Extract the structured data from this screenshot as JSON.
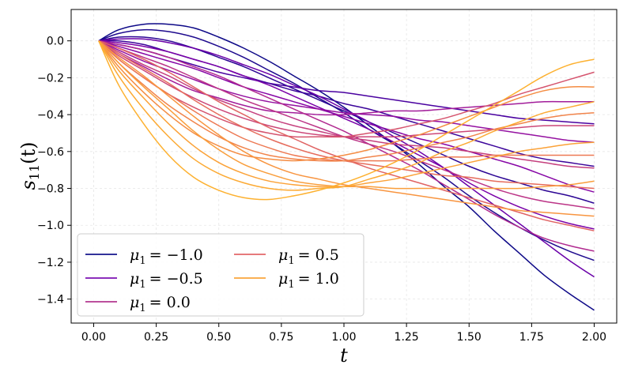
{
  "chart_data": {
    "type": "line",
    "title": "",
    "xlabel": "t",
    "ylabel": "s_{11}(t)",
    "ylabel_main": "s",
    "ylabel_sub": "11",
    "ylabel_tail": "(t)",
    "xlim": [
      -0.09,
      2.09
    ],
    "ylim": [
      -1.53,
      0.17
    ],
    "grid": true,
    "x_ticks": [
      0.0,
      0.25,
      0.5,
      0.75,
      1.0,
      1.25,
      1.5,
      1.75,
      2.0
    ],
    "x_tick_labels": [
      "0.00",
      "0.25",
      "0.50",
      "0.75",
      "1.00",
      "1.25",
      "1.50",
      "1.75",
      "2.00"
    ],
    "y_ticks": [
      0.0,
      -0.2,
      -0.4,
      -0.6,
      -0.8,
      -1.0,
      -1.2,
      -1.4
    ],
    "y_tick_labels": [
      "0.0",
      "−0.2",
      "−0.4",
      "−0.6",
      "−0.8",
      "−1.0",
      "−1.2",
      "−1.4"
    ],
    "x": [
      0.02,
      0.1,
      0.2,
      0.3,
      0.4,
      0.5,
      0.6,
      0.7,
      0.8,
      0.9,
      1.0,
      1.1,
      1.2,
      1.3,
      1.4,
      1.5,
      1.6,
      1.7,
      1.8,
      1.9,
      2.0
    ],
    "legend": {
      "location": "lower-left",
      "entries": [
        {
          "label": "μ₁ = −1.0",
          "symbol": "μ",
          "subscript": "1",
          "value": "= −1.0",
          "color": "#15158c"
        },
        {
          "label": "μ₁ = −0.5",
          "symbol": "μ",
          "subscript": "1",
          "value": "= −0.5",
          "color": "#7b10b3"
        },
        {
          "label": "μ₁ = 0.0",
          "symbol": "μ",
          "subscript": "1",
          "value": "= 0.0",
          "color": "#b3378f"
        },
        {
          "label": "μ₁ = 0.5",
          "symbol": "μ",
          "subscript": "1",
          "value": "= 0.5",
          "color": "#e3676a"
        },
        {
          "label": "μ₁ = 1.0",
          "symbol": "μ",
          "subscript": "1",
          "value": "= 1.0",
          "color": "#f9a53b"
        }
      ]
    },
    "series": [
      {
        "color": "#0d0887",
        "values": [
          0.0,
          0.06,
          0.09,
          0.09,
          0.07,
          0.02,
          -0.04,
          -0.11,
          -0.19,
          -0.27,
          -0.36,
          -0.46,
          -0.56,
          -0.67,
          -0.79,
          -0.9,
          -1.03,
          -1.15,
          -1.27,
          -1.37,
          -1.46
        ]
      },
      {
        "color": "#1e0a8e",
        "values": [
          0.0,
          0.04,
          0.06,
          0.05,
          0.02,
          -0.03,
          -0.09,
          -0.16,
          -0.23,
          -0.31,
          -0.39,
          -0.48,
          -0.56,
          -0.65,
          -0.74,
          -0.84,
          -0.93,
          -1.01,
          -1.08,
          -1.14,
          -1.19
        ]
      },
      {
        "color": "#2c0594",
        "values": [
          0.0,
          0.02,
          0.02,
          0.0,
          -0.04,
          -0.09,
          -0.14,
          -0.2,
          -0.26,
          -0.32,
          -0.38,
          -0.44,
          -0.5,
          -0.56,
          -0.62,
          -0.68,
          -0.73,
          -0.77,
          -0.81,
          -0.84,
          -0.88
        ]
      },
      {
        "color": "#3b049a",
        "values": [
          0.0,
          0.0,
          -0.02,
          -0.06,
          -0.1,
          -0.14,
          -0.19,
          -0.23,
          -0.27,
          -0.3,
          -0.34,
          -0.37,
          -0.41,
          -0.45,
          -0.49,
          -0.53,
          -0.57,
          -0.61,
          -0.64,
          -0.66,
          -0.68
        ]
      },
      {
        "color": "#4a02a0",
        "values": [
          0.0,
          -0.02,
          -0.05,
          -0.09,
          -0.13,
          -0.17,
          -0.2,
          -0.23,
          -0.25,
          -0.27,
          -0.28,
          -0.3,
          -0.32,
          -0.34,
          -0.36,
          -0.38,
          -0.4,
          -0.42,
          -0.43,
          -0.44,
          -0.45
        ]
      },
      {
        "color": "#6a00a8",
        "values": [
          0.0,
          0.01,
          0.01,
          -0.01,
          -0.04,
          -0.08,
          -0.13,
          -0.18,
          -0.24,
          -0.3,
          -0.37,
          -0.44,
          -0.52,
          -0.6,
          -0.69,
          -0.79,
          -0.89,
          -0.99,
          -1.09,
          -1.19,
          -1.28
        ]
      },
      {
        "color": "#7a02a8",
        "values": [
          0.0,
          -0.01,
          -0.03,
          -0.06,
          -0.1,
          -0.14,
          -0.19,
          -0.24,
          -0.3,
          -0.36,
          -0.42,
          -0.48,
          -0.55,
          -0.62,
          -0.69,
          -0.77,
          -0.84,
          -0.9,
          -0.95,
          -0.99,
          -1.02
        ]
      },
      {
        "color": "#8707a6",
        "values": [
          0.0,
          -0.03,
          -0.07,
          -0.11,
          -0.15,
          -0.2,
          -0.25,
          -0.29,
          -0.33,
          -0.37,
          -0.41,
          -0.45,
          -0.49,
          -0.53,
          -0.56,
          -0.6,
          -0.64,
          -0.68,
          -0.73,
          -0.78,
          -0.82
        ]
      },
      {
        "color": "#9512a1",
        "values": [
          0.0,
          -0.05,
          -0.11,
          -0.16,
          -0.21,
          -0.26,
          -0.3,
          -0.33,
          -0.35,
          -0.37,
          -0.39,
          -0.4,
          -0.41,
          -0.43,
          -0.44,
          -0.46,
          -0.48,
          -0.5,
          -0.52,
          -0.54,
          -0.55
        ]
      },
      {
        "color": "#a21d9a",
        "values": [
          0.0,
          -0.07,
          -0.14,
          -0.21,
          -0.27,
          -0.31,
          -0.35,
          -0.38,
          -0.39,
          -0.4,
          -0.4,
          -0.39,
          -0.38,
          -0.38,
          -0.37,
          -0.36,
          -0.35,
          -0.34,
          -0.33,
          -0.33,
          -0.33
        ]
      },
      {
        "color": "#b12a90",
        "values": [
          0.0,
          -0.02,
          -0.05,
          -0.09,
          -0.14,
          -0.19,
          -0.25,
          -0.31,
          -0.37,
          -0.43,
          -0.49,
          -0.56,
          -0.63,
          -0.7,
          -0.78,
          -0.86,
          -0.94,
          -1.01,
          -1.07,
          -1.11,
          -1.14
        ]
      },
      {
        "color": "#bc3587",
        "values": [
          0.0,
          -0.04,
          -0.09,
          -0.14,
          -0.2,
          -0.26,
          -0.32,
          -0.37,
          -0.42,
          -0.47,
          -0.52,
          -0.56,
          -0.6,
          -0.65,
          -0.7,
          -0.75,
          -0.8,
          -0.84,
          -0.87,
          -0.89,
          -0.91
        ]
      },
      {
        "color": "#c5407e",
        "values": [
          0.0,
          -0.06,
          -0.13,
          -0.19,
          -0.26,
          -0.32,
          -0.37,
          -0.42,
          -0.46,
          -0.49,
          -0.52,
          -0.54,
          -0.56,
          -0.57,
          -0.58,
          -0.6,
          -0.62,
          -0.64,
          -0.66,
          -0.68,
          -0.69
        ]
      },
      {
        "color": "#cc4778",
        "values": [
          0.0,
          -0.08,
          -0.16,
          -0.24,
          -0.31,
          -0.37,
          -0.42,
          -0.46,
          -0.49,
          -0.51,
          -0.52,
          -0.52,
          -0.52,
          -0.51,
          -0.5,
          -0.49,
          -0.48,
          -0.47,
          -0.46,
          -0.46,
          -0.46
        ]
      },
      {
        "color": "#d5546e",
        "values": [
          0.0,
          -0.1,
          -0.2,
          -0.29,
          -0.36,
          -0.42,
          -0.47,
          -0.5,
          -0.52,
          -0.52,
          -0.52,
          -0.5,
          -0.48,
          -0.45,
          -0.42,
          -0.38,
          -0.34,
          -0.29,
          -0.25,
          -0.21,
          -0.17
        ]
      },
      {
        "color": "#e06363",
        "values": [
          0.0,
          -0.04,
          -0.1,
          -0.17,
          -0.25,
          -0.33,
          -0.4,
          -0.47,
          -0.53,
          -0.59,
          -0.64,
          -0.69,
          -0.73,
          -0.77,
          -0.81,
          -0.85,
          -0.89,
          -0.93,
          -0.97,
          -1.0,
          -1.03
        ]
      },
      {
        "color": "#e66c5c",
        "values": [
          0.0,
          -0.07,
          -0.15,
          -0.23,
          -0.32,
          -0.4,
          -0.47,
          -0.53,
          -0.58,
          -0.62,
          -0.65,
          -0.67,
          -0.69,
          -0.71,
          -0.73,
          -0.74,
          -0.76,
          -0.77,
          -0.78,
          -0.79,
          -0.8
        ]
      },
      {
        "color": "#ed7953",
        "values": [
          0.0,
          -0.1,
          -0.2,
          -0.29,
          -0.38,
          -0.46,
          -0.53,
          -0.58,
          -0.62,
          -0.64,
          -0.65,
          -0.65,
          -0.65,
          -0.64,
          -0.63,
          -0.63,
          -0.62,
          -0.62,
          -0.62,
          -0.62,
          -0.62
        ]
      },
      {
        "color": "#f1844b",
        "values": [
          0.0,
          -0.12,
          -0.24,
          -0.35,
          -0.44,
          -0.52,
          -0.58,
          -0.62,
          -0.64,
          -0.65,
          -0.65,
          -0.63,
          -0.61,
          -0.58,
          -0.55,
          -0.52,
          -0.48,
          -0.45,
          -0.42,
          -0.4,
          -0.39
        ]
      },
      {
        "color": "#f48c42",
        "values": [
          0.0,
          -0.14,
          -0.28,
          -0.4,
          -0.5,
          -0.57,
          -0.62,
          -0.64,
          -0.65,
          -0.64,
          -0.62,
          -0.59,
          -0.55,
          -0.51,
          -0.46,
          -0.41,
          -0.36,
          -0.31,
          -0.27,
          -0.25,
          -0.25
        ]
      },
      {
        "color": "#f89540",
        "values": [
          0.0,
          -0.09,
          -0.19,
          -0.3,
          -0.41,
          -0.51,
          -0.6,
          -0.67,
          -0.72,
          -0.75,
          -0.78,
          -0.8,
          -0.82,
          -0.84,
          -0.86,
          -0.88,
          -0.9,
          -0.92,
          -0.93,
          -0.94,
          -0.95
        ]
      },
      {
        "color": "#f99e3c",
        "values": [
          0.0,
          -0.12,
          -0.25,
          -0.37,
          -0.49,
          -0.59,
          -0.67,
          -0.72,
          -0.76,
          -0.78,
          -0.79,
          -0.79,
          -0.8,
          -0.8,
          -0.8,
          -0.8,
          -0.8,
          -0.8,
          -0.79,
          -0.78,
          -0.76
        ]
      },
      {
        "color": "#fba238",
        "values": [
          0.0,
          -0.16,
          -0.31,
          -0.45,
          -0.57,
          -0.66,
          -0.72,
          -0.76,
          -0.78,
          -0.79,
          -0.79,
          -0.77,
          -0.75,
          -0.72,
          -0.69,
          -0.66,
          -0.63,
          -0.6,
          -0.58,
          -0.56,
          -0.55
        ]
      },
      {
        "color": "#fcaa34",
        "values": [
          0.0,
          -0.19,
          -0.37,
          -0.52,
          -0.64,
          -0.72,
          -0.77,
          -0.8,
          -0.81,
          -0.8,
          -0.79,
          -0.75,
          -0.71,
          -0.66,
          -0.6,
          -0.55,
          -0.49,
          -0.44,
          -0.39,
          -0.36,
          -0.33
        ]
      },
      {
        "color": "#fdb130",
        "values": [
          0.0,
          -0.24,
          -0.45,
          -0.62,
          -0.74,
          -0.81,
          -0.85,
          -0.86,
          -0.84,
          -0.81,
          -0.77,
          -0.72,
          -0.66,
          -0.59,
          -0.51,
          -0.43,
          -0.35,
          -0.27,
          -0.19,
          -0.13,
          -0.1
        ]
      }
    ]
  }
}
